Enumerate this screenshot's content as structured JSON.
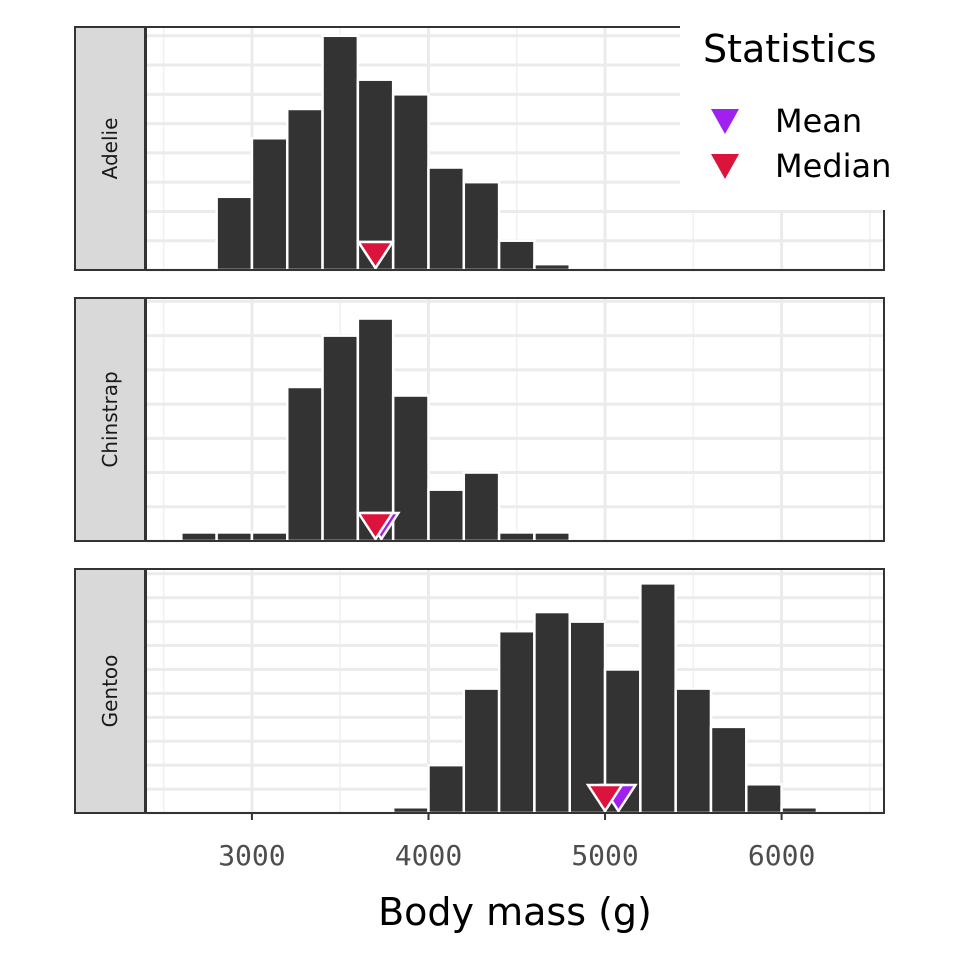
{
  "chart_data": {
    "type": "bar",
    "subtype": "histogram",
    "xlabel": "Body mass (g)",
    "xlim": [
      2400,
      6580
    ],
    "x_ticks": [
      3000,
      4000,
      5000,
      6000
    ],
    "x_tick_labels": [
      "3000",
      "4000",
      "5000",
      "6000"
    ],
    "grid": true,
    "legend": {
      "title": "Statistics",
      "position": "top-right",
      "entries": [
        {
          "label": "Mean",
          "color": "#a020f0",
          "shape": "down-triangle"
        },
        {
          "label": "Median",
          "color": "#dc143c",
          "shape": "down-triangle"
        }
      ]
    },
    "bar_color": "#333333",
    "panels": [
      {
        "facet": "Adelie",
        "bins": [
          {
            "x0": 2800,
            "x1": 3000,
            "count": 5
          },
          {
            "x0": 3000,
            "x1": 3200,
            "count": 9
          },
          {
            "x0": 3200,
            "x1": 3400,
            "count": 11
          },
          {
            "x0": 3400,
            "x1": 3600,
            "count": 16
          },
          {
            "x0": 3600,
            "x1": 3800,
            "count": 13
          },
          {
            "x0": 3800,
            "x1": 4000,
            "count": 12
          },
          {
            "x0": 4000,
            "x1": 4200,
            "count": 7
          },
          {
            "x0": 4200,
            "x1": 4400,
            "count": 6
          },
          {
            "x0": 4400,
            "x1": 4600,
            "count": 2
          },
          {
            "x0": 4600,
            "x1": 4800,
            "count": 0.4
          }
        ],
        "ymax": 16.6,
        "mean": 3700,
        "median": 3700
      },
      {
        "facet": "Chinstrap",
        "bins": [
          {
            "x0": 2600,
            "x1": 2800,
            "count": 0.5
          },
          {
            "x0": 2800,
            "x1": 3000,
            "count": 0.5
          },
          {
            "x0": 3000,
            "x1": 3200,
            "count": 0.5
          },
          {
            "x0": 3200,
            "x1": 3400,
            "count": 9
          },
          {
            "x0": 3400,
            "x1": 3600,
            "count": 12
          },
          {
            "x0": 3600,
            "x1": 3800,
            "count": 13
          },
          {
            "x0": 3800,
            "x1": 4000,
            "count": 8.5
          },
          {
            "x0": 4000,
            "x1": 4200,
            "count": 3
          },
          {
            "x0": 4200,
            "x1": 4400,
            "count": 4
          },
          {
            "x0": 4400,
            "x1": 4600,
            "count": 0.5
          },
          {
            "x0": 4600,
            "x1": 4800,
            "count": 0.5
          }
        ],
        "ymax": 14.2,
        "mean": 3733,
        "median": 3700
      },
      {
        "facet": "Gentoo",
        "bins": [
          {
            "x0": 3800,
            "x1": 4000,
            "count": 0.6
          },
          {
            "x0": 4000,
            "x1": 4200,
            "count": 5
          },
          {
            "x0": 4200,
            "x1": 4400,
            "count": 13
          },
          {
            "x0": 4400,
            "x1": 4600,
            "count": 19
          },
          {
            "x0": 4600,
            "x1": 4800,
            "count": 21
          },
          {
            "x0": 4800,
            "x1": 5000,
            "count": 20
          },
          {
            "x0": 5000,
            "x1": 5200,
            "count": 15
          },
          {
            "x0": 5200,
            "x1": 5400,
            "count": 24
          },
          {
            "x0": 5400,
            "x1": 5600,
            "count": 13
          },
          {
            "x0": 5600,
            "x1": 5800,
            "count": 9
          },
          {
            "x0": 5800,
            "x1": 6000,
            "count": 3
          },
          {
            "x0": 6000,
            "x1": 6200,
            "count": 0.6
          }
        ],
        "ymax": 25.5,
        "mean": 5076,
        "median": 5000
      }
    ]
  }
}
